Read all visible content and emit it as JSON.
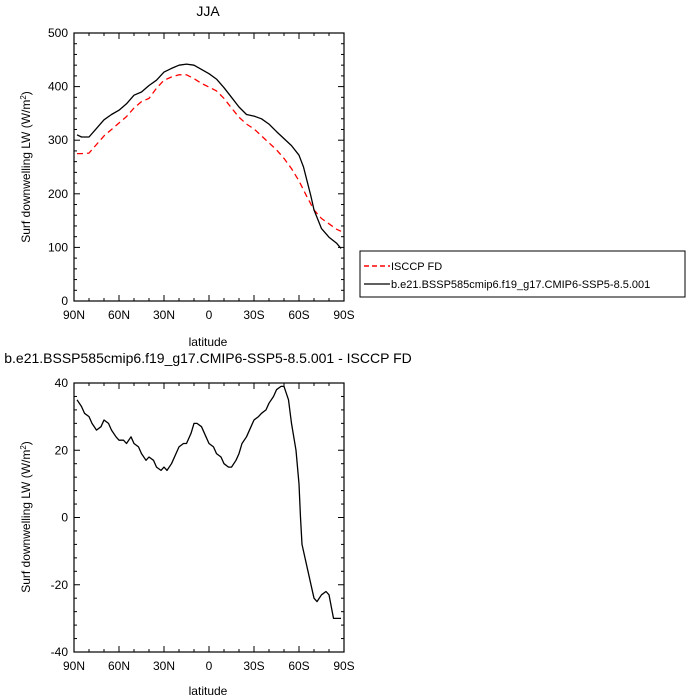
{
  "chart_data": [
    {
      "type": "line",
      "title": "JJA",
      "xlabel": "latitude",
      "ylabel_main": "Surf downwelling LW (W/m",
      "ylabel_sup": "2",
      "ylabel_close": ")",
      "xlim": [
        90,
        -90
      ],
      "ylim": [
        0,
        500
      ],
      "xticks": [
        90,
        60,
        30,
        0,
        -30,
        -60,
        -90
      ],
      "xtick_labels": [
        "90N",
        "60N",
        "30N",
        "0",
        "30S",
        "60S",
        "90S"
      ],
      "yticks": [
        0,
        100,
        200,
        300,
        400,
        500
      ],
      "ytick_labels": [
        "0",
        "100",
        "200",
        "300",
        "400",
        "500"
      ],
      "legend_position": "right",
      "series": [
        {
          "name": "ISCCP FD",
          "color": "#ff0000",
          "dash": "dashed",
          "x": [
            88,
            85,
            80,
            75,
            70,
            65,
            60,
            55,
            50,
            45,
            40,
            35,
            30,
            25,
            20,
            15,
            10,
            5,
            0,
            -5,
            -10,
            -15,
            -20,
            -25,
            -30,
            -35,
            -40,
            -45,
            -50,
            -55,
            -60,
            -65,
            -70,
            -75,
            -80,
            -85,
            -88
          ],
          "y": [
            275,
            275,
            276,
            292,
            308,
            320,
            332,
            344,
            360,
            372,
            378,
            397,
            412,
            418,
            422,
            422,
            415,
            406,
            399,
            392,
            378,
            360,
            343,
            330,
            321,
            308,
            295,
            282,
            266,
            247,
            224,
            196,
            170,
            154,
            144,
            134,
            130
          ]
        },
        {
          "name": "b.e21.BSSP585cmip6.f19_g17.CMIP6-SSP5-8.5.001",
          "color": "#000000",
          "dash": "solid",
          "x": [
            88,
            85,
            80,
            75,
            70,
            65,
            60,
            55,
            50,
            45,
            40,
            35,
            30,
            25,
            20,
            15,
            10,
            5,
            0,
            -5,
            -10,
            -15,
            -20,
            -25,
            -30,
            -35,
            -40,
            -45,
            -50,
            -55,
            -60,
            -63,
            -65,
            -68,
            -70,
            -75,
            -80,
            -85,
            -88
          ],
          "y": [
            310,
            306,
            306,
            322,
            338,
            348,
            356,
            368,
            384,
            390,
            402,
            412,
            427,
            434,
            440,
            442,
            440,
            432,
            424,
            414,
            398,
            380,
            362,
            348,
            345,
            340,
            330,
            316,
            303,
            290,
            272,
            250,
            228,
            195,
            170,
            135,
            119,
            108,
            98
          ]
        }
      ]
    },
    {
      "type": "line",
      "title": "b.e21.BSSP585cmip6.f19_g17.CMIP6-SSP5-8.5.001 - ISCCP FD",
      "xlabel": "latitude",
      "ylabel_main": "Surf downwelling LW (W/m",
      "ylabel_sup": "2",
      "ylabel_close": ")",
      "xlim": [
        90,
        -90
      ],
      "ylim": [
        -40,
        40
      ],
      "xticks": [
        90,
        60,
        30,
        0,
        -30,
        -60,
        -90
      ],
      "xtick_labels": [
        "90N",
        "60N",
        "30N",
        "0",
        "30S",
        "60S",
        "90S"
      ],
      "yticks": [
        -40,
        -20,
        0,
        20,
        40
      ],
      "ytick_labels": [
        "-40",
        "-20",
        "0",
        "20",
        "40"
      ],
      "series": [
        {
          "color": "#000000",
          "dash": "solid",
          "x": [
            88,
            85,
            83,
            80,
            78,
            75,
            72,
            70,
            67,
            65,
            62,
            60,
            57,
            55,
            52,
            50,
            47,
            45,
            42,
            40,
            37,
            35,
            32,
            30,
            28,
            25,
            22,
            20,
            17,
            15,
            12,
            10,
            8,
            5,
            2,
            0,
            -3,
            -5,
            -8,
            -10,
            -13,
            -15,
            -18,
            -20,
            -22,
            -25,
            -28,
            -30,
            -33,
            -35,
            -38,
            -40,
            -43,
            -45,
            -48,
            -50,
            -53,
            -55,
            -58,
            -60,
            -61,
            -62,
            -64,
            -66,
            -68,
            -70,
            -72,
            -75,
            -78,
            -80,
            -83,
            -85,
            -88
          ],
          "y": [
            35,
            33,
            31,
            30,
            28,
            26,
            27,
            29,
            28,
            26,
            24,
            23,
            23,
            22,
            24,
            22,
            21,
            19,
            17,
            18,
            17,
            15,
            14,
            15,
            14,
            16,
            19,
            21,
            22,
            22,
            25,
            28,
            28,
            27,
            24,
            22,
            21,
            19,
            18,
            16,
            15,
            15,
            17,
            19,
            22,
            24,
            27,
            29,
            30,
            31,
            32,
            34,
            36,
            38,
            39,
            39,
            35,
            28,
            20,
            10,
            0,
            -8,
            -12,
            -16,
            -20,
            -24,
            -25,
            -23,
            -22,
            -23,
            -30,
            -30,
            -30
          ]
        }
      ]
    }
  ]
}
